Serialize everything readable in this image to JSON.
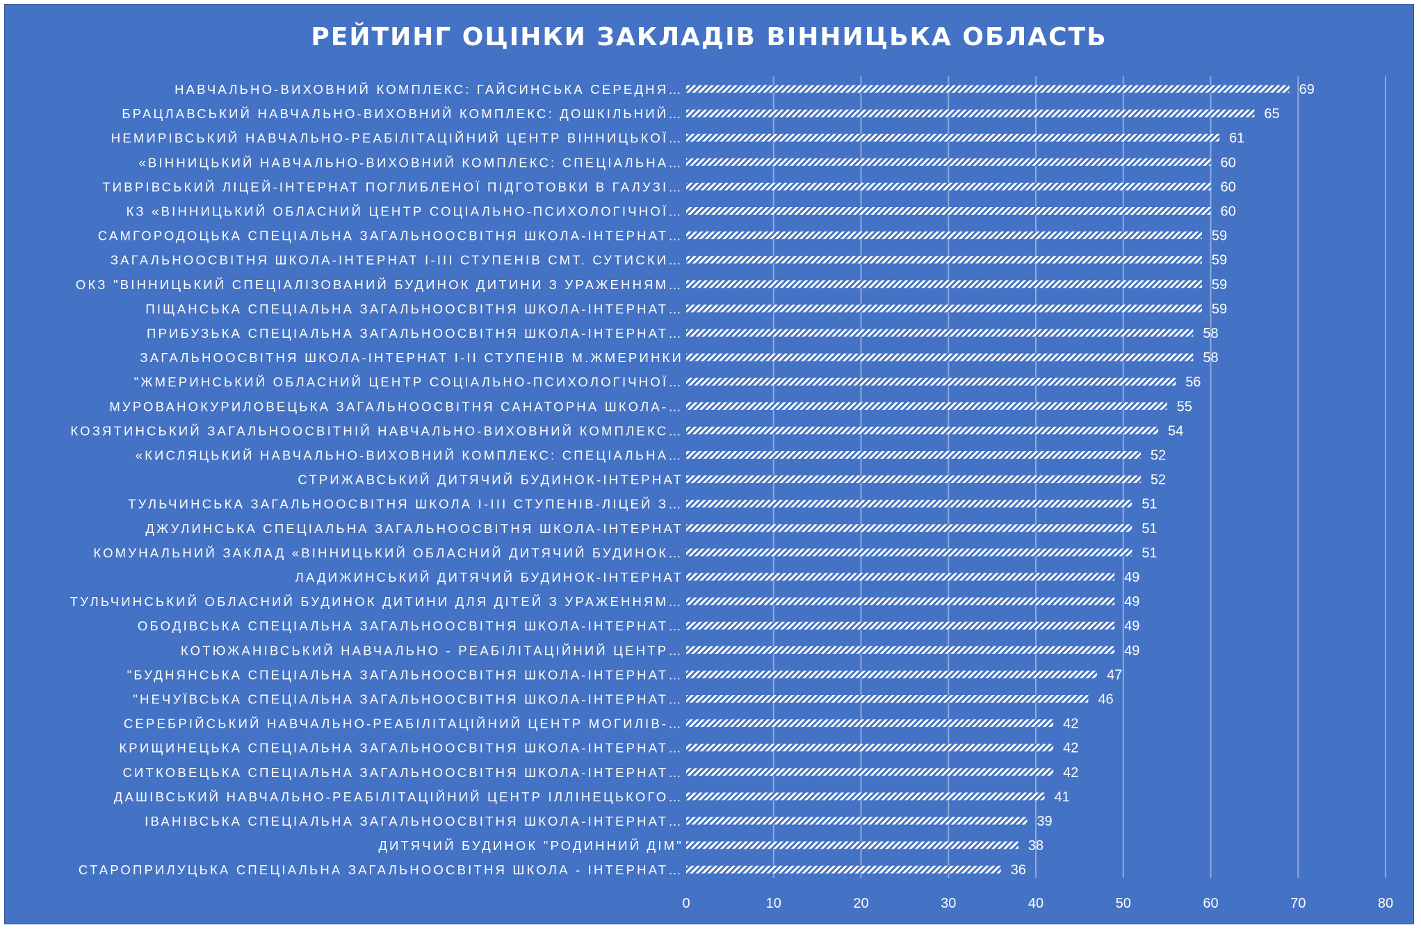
{
  "chart_data": {
    "type": "bar",
    "orientation": "horizontal",
    "title": "РЕЙТИНГ ОЦІНКИ ЗАКЛАДІВ ВІННИЦЬКА ОБЛАСТЬ",
    "xlabel": "",
    "ylabel": "",
    "xlim": [
      0,
      80
    ],
    "xticks": [
      0,
      10,
      20,
      30,
      40,
      50,
      60,
      70,
      80
    ],
    "grid": "vertical",
    "legend": "none",
    "colors": {
      "background": "#4472C4",
      "bar_stripe": "#ffffff",
      "bar_fill": "#4472C4",
      "text": "#ffffff",
      "grid": "#8faadc"
    },
    "categories": [
      "НАВЧАЛЬНО-ВИХОВНИЙ КОМПЛЕКС: ГАЙСИНСЬКА СЕРЕДНЯ…",
      "БРАЦЛАВСЬКИЙ НАВЧАЛЬНО-ВИХОВНИЙ КОМПЛЕКС: ДОШКІЛЬНИЙ…",
      "НЕМИРІВСЬКИЙ НАВЧАЛЬНО-РЕАБІЛІТАЦІЙНИЙ ЦЕНТР ВІННИЦЬКОЇ…",
      "«ВІННИЦЬКИЙ НАВЧАЛЬНО-ВИХОВНИЙ КОМПЛЕКС: СПЕЦІАЛЬНА…",
      "ТИВРІВСЬКИЙ ЛІЦЕЙ-ІНТЕРНАТ ПОГЛИБЛЕНОЇ ПІДГОТОВКИ В ГАЛУЗІ…",
      "КЗ «ВІННИЦЬКИЙ ОБЛАСНИЙ ЦЕНТР СОЦІАЛЬНО-ПСИХОЛОГІЧНОЇ…",
      "САМГОРОДОЦЬКА СПЕЦІАЛЬНА ЗАГАЛЬНООСВІТНЯ ШКОЛА-ІНТЕРНАТ…",
      "ЗАГАЛЬНООСВІТНЯ ШКОЛА-ІНТЕРНАТ І-ІІІ СТУПЕНІВ СМТ. СУТИСКИ…",
      "ОКЗ \"ВІННИЦЬКИЙ СПЕЦІАЛІЗОВАНИЙ БУДИНОК ДИТИНИ З УРАЖЕННЯМ…",
      "ПІЩАНСЬКА СПЕЦІАЛЬНА ЗАГАЛЬНООСВІТНЯ ШКОЛА-ІНТЕРНАТ…",
      "ПРИБУЗЬКА СПЕЦІАЛЬНА ЗАГАЛЬНООСВІТНЯ ШКОЛА-ІНТЕРНАТ…",
      "ЗАГАЛЬНООСВІТНЯ ШКОЛА-ІНТЕРНАТ І-ІІ СТУПЕНІВ М.ЖМЕРИНКИ",
      "\"ЖМЕРИНСЬКИЙ ОБЛАСНИЙ ЦЕНТР СОЦІАЛЬНО-ПСИХОЛОГІЧНОЇ…",
      "МУРОВАНОКУРИЛОВЕЦЬКА ЗАГАЛЬНООСВІТНЯ САНАТОРНА ШКОЛА-…",
      "КОЗЯТИНСЬКИЙ ЗАГАЛЬНООСВІТНІЙ НАВЧАЛЬНО-ВИХОВНИЙ КОМПЛЕКС…",
      "«КИСЛЯЦЬКИЙ НАВЧАЛЬНО-ВИХОВНИЙ КОМПЛЕКС: СПЕЦІАЛЬНА…",
      "СТРИЖАВСЬКИЙ ДИТЯЧИЙ БУДИНОК-ІНТЕРНАТ",
      "ТУЛЬЧИНСЬКА ЗАГАЛЬНООСВІТНЯ ШКОЛА І-ІІІ СТУПЕНІВ-ЛІЦЕЙ З…",
      "ДЖУЛИНСЬКА СПЕЦІАЛЬНА ЗАГАЛЬНООСВІТНЯ ШКОЛА-ІНТЕРНАТ",
      "КОМУНАЛЬНИЙ ЗАКЛАД «ВІННИЦЬКИЙ ОБЛАСНИЙ ДИТЯЧИЙ БУДИНОК…",
      "ЛАДИЖИНСЬКИЙ ДИТЯЧИЙ БУДИНОК-ІНТЕРНАТ",
      "ТУЛЬЧИНСЬКИЙ ОБЛАСНИЙ БУДИНОК ДИТИНИ ДЛЯ ДІТЕЙ З УРАЖЕННЯМ…",
      "ОБОДІВСЬКА СПЕЦІАЛЬНА ЗАГАЛЬНООСВІТНЯ ШКОЛА-ІНТЕРНАТ…",
      "КОТЮЖАНІВСЬКИЙ НАВЧАЛЬНО - РЕАБІЛІТАЦІЙНИЙ ЦЕНТР…",
      "\"БУДНЯНСЬКА СПЕЦІАЛЬНА ЗАГАЛЬНООСВІТНЯ ШКОЛА-ІНТЕРНАТ…",
      "\"НЕЧУЇВСЬКА СПЕЦІАЛЬНА ЗАГАЛЬНООСВІТНЯ ШКОЛА-ІНТЕРНАТ…",
      "СЕРЕБРІЙСЬКИЙ НАВЧАЛЬНО-РЕАБІЛІТАЦІЙНИЙ ЦЕНТР МОГИЛІВ-…",
      "КРИЩИНЕЦЬКА СПЕЦІАЛЬНА ЗАГАЛЬНООСВІТНЯ ШКОЛА-ІНТЕРНАТ…",
      "СИТКОВЕЦЬКА СПЕЦІАЛЬНА ЗАГАЛЬНООСВІТНЯ ШКОЛА-ІНТЕРНАТ…",
      "ДАШІВСЬКИЙ НАВЧАЛЬНО-РЕАБІЛІТАЦІЙНИЙ ЦЕНТР ІЛЛІНЕЦЬКОГО…",
      "ІВАНІВСЬКА СПЕЦІАЛЬНА ЗАГАЛЬНООСВІТНЯ ШКОЛА-ІНТЕРНАТ…",
      "ДИТЯЧИЙ БУДИНОК \"РОДИННИЙ ДІМ\"",
      "СТАРОПРИЛУЦЬКА СПЕЦІАЛЬНА ЗАГАЛЬНООСВІТНЯ ШКОЛА - ІНТЕРНАТ…"
    ],
    "values": [
      69,
      65,
      61,
      60,
      60,
      60,
      59,
      59,
      59,
      59,
      58,
      58,
      56,
      55,
      54,
      52,
      52,
      51,
      51,
      51,
      49,
      49,
      49,
      49,
      47,
      46,
      42,
      42,
      42,
      41,
      39,
      38,
      36
    ]
  }
}
